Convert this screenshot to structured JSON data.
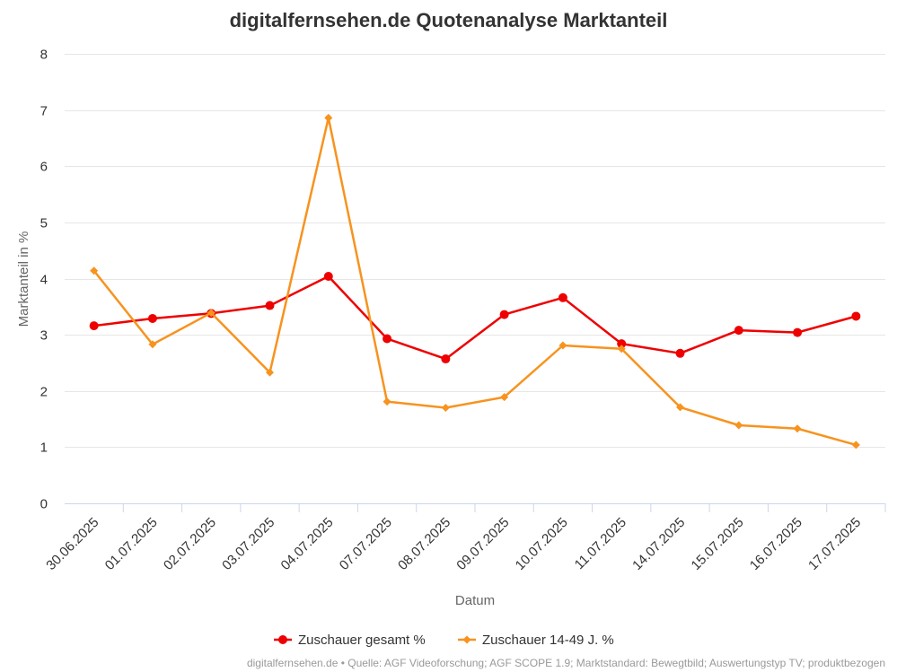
{
  "chart_data": {
    "type": "line",
    "title": "digitalfernsehen.de Quotenanalyse Marktanteil",
    "xlabel": "Datum",
    "ylabel": "Marktanteil in %",
    "ylim": [
      0,
      8
    ],
    "yticks": [
      "0",
      "1",
      "2",
      "3",
      "4",
      "5",
      "6",
      "7",
      "8"
    ],
    "grid": true,
    "legend_position": "bottom-center",
    "categories": [
      "30.06.2025",
      "01.07.2025",
      "02.07.2025",
      "03.07.2025",
      "04.07.2025",
      "07.07.2025",
      "08.07.2025",
      "09.07.2025",
      "10.07.2025",
      "11.07.2025",
      "14.07.2025",
      "15.07.2025",
      "16.07.2025",
      "17.07.2025"
    ],
    "series": [
      {
        "name": "Zuschauer gesamt %",
        "color": "#ee0000",
        "marker": "circle",
        "values": [
          3.16,
          3.29,
          3.38,
          3.52,
          4.04,
          2.93,
          2.57,
          3.36,
          3.66,
          2.84,
          2.67,
          3.08,
          3.04,
          3.33
        ]
      },
      {
        "name": "Zuschauer 14-49 J. %",
        "color": "#f7931e",
        "marker": "diamond",
        "values": [
          4.14,
          2.83,
          3.39,
          2.33,
          6.86,
          1.81,
          1.7,
          1.89,
          2.81,
          2.75,
          1.71,
          1.39,
          1.33,
          1.04
        ]
      }
    ],
    "credits": "digitalfernsehen.de • Quelle: AGF Videoforschung; AGF SCOPE 1.9; Marktstandard: Bewegtbild; Auswertungstyp TV; produktbezogen"
  }
}
